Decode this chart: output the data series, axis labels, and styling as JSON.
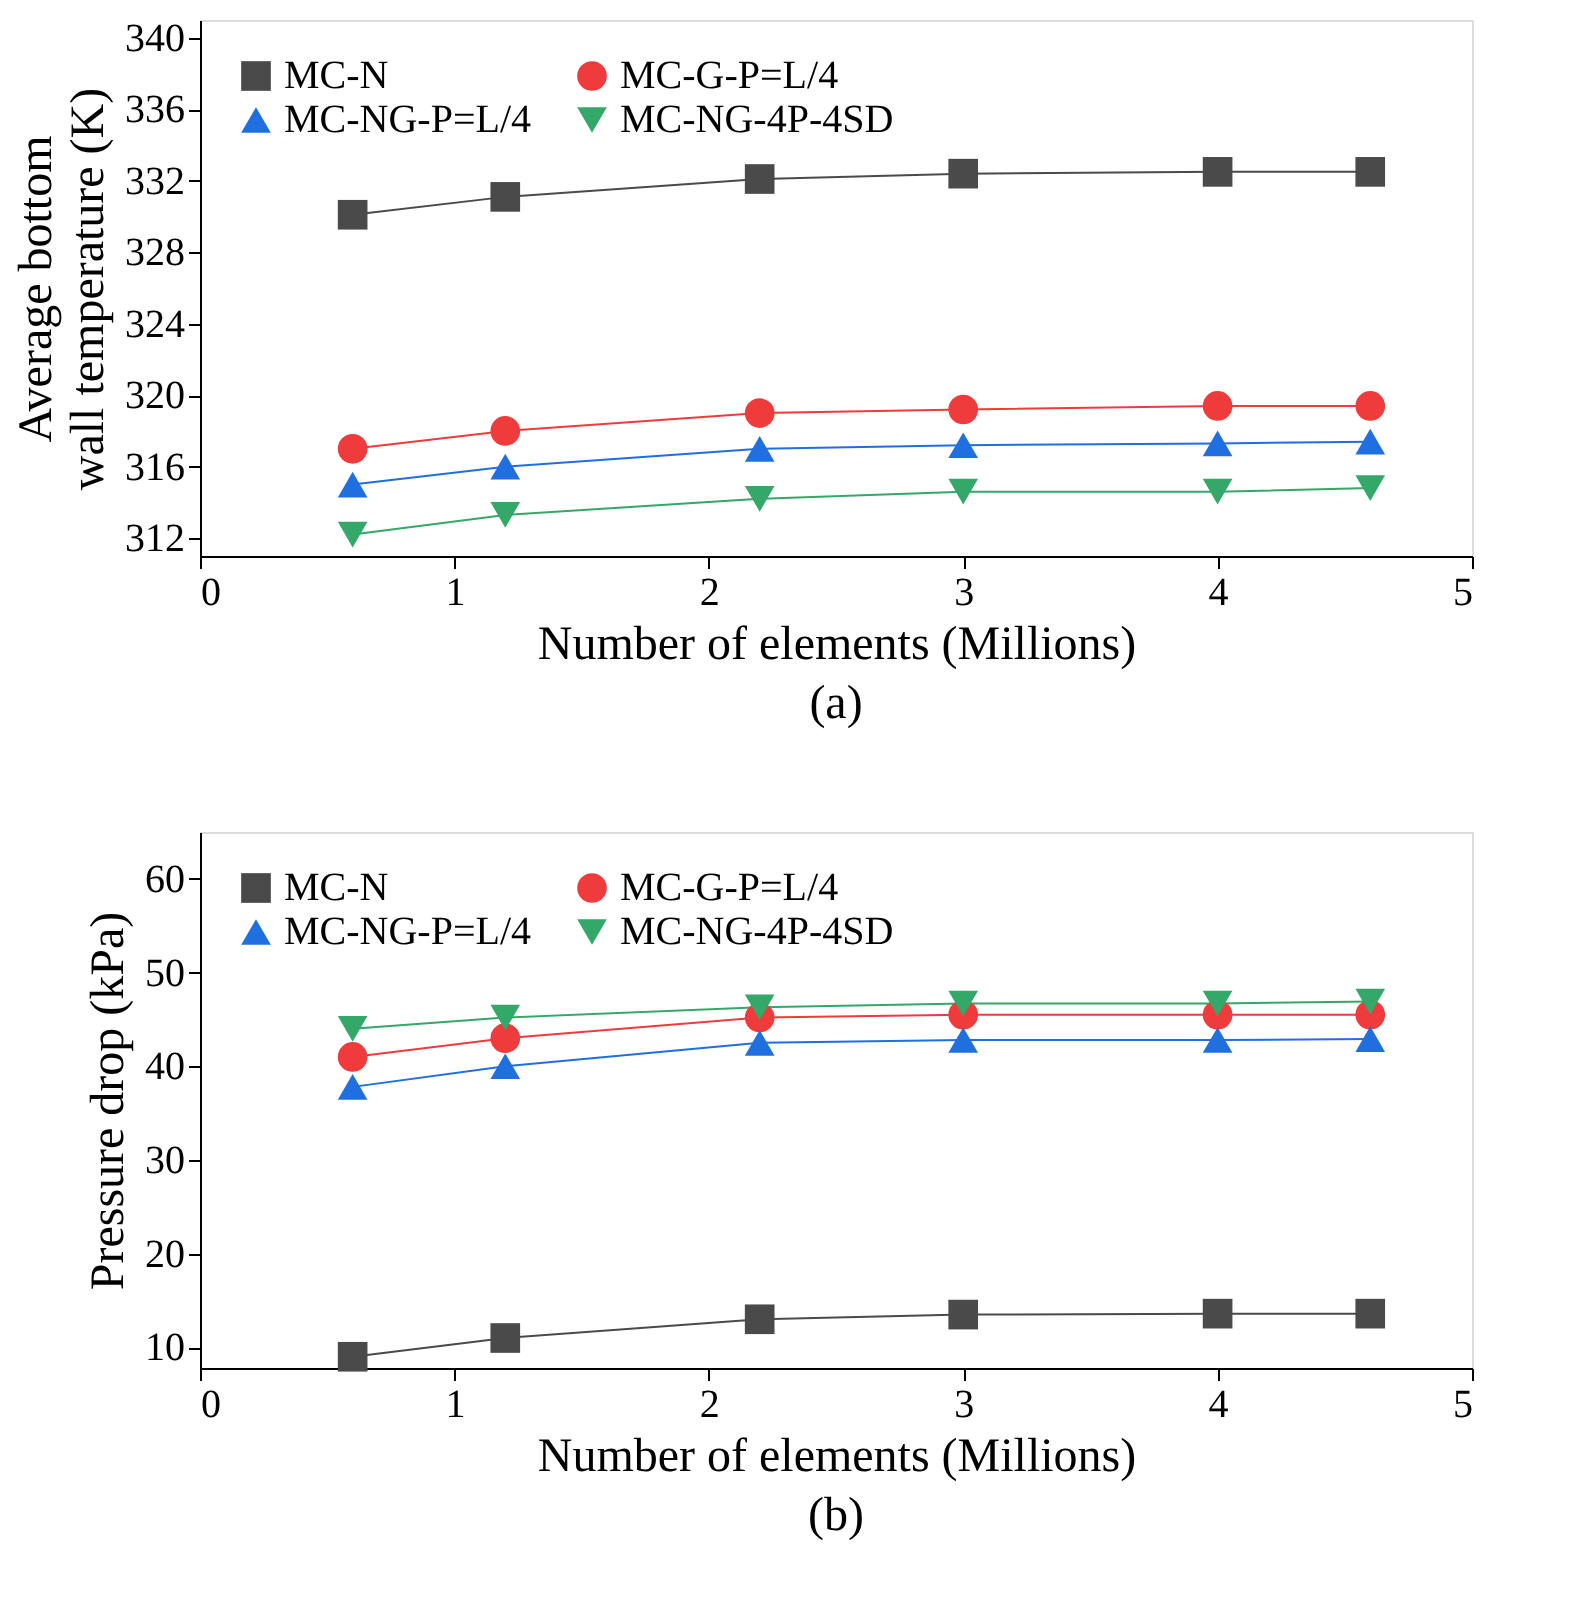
{
  "chart_data": [
    {
      "type": "line",
      "xlabel": "Number of elements (Millions)",
      "ylabel": "Average bottom wall temperature (K)",
      "annotations": [
        "(a)"
      ],
      "x": [
        0.6,
        1.2,
        2.2,
        3,
        4,
        4.6
      ],
      "xlim": [
        0,
        5
      ],
      "xticks": [
        0,
        1,
        2,
        3,
        4,
        5
      ],
      "ylim": [
        311,
        341
      ],
      "yticks": [
        312,
        316,
        320,
        324,
        328,
        332,
        336,
        340
      ],
      "grid": false,
      "legend": "top left",
      "line_style": "solid",
      "series": [
        {
          "name": "MC-N",
          "color": "#4a4a4a",
          "marker": "square",
          "values": [
            330.1,
            331.1,
            332.1,
            332.4,
            332.5,
            332.5
          ]
        },
        {
          "name": "MC-G-P=L/4",
          "color": "#ef3b3b",
          "marker": "circle",
          "values": [
            317.0,
            318.0,
            319.0,
            319.2,
            319.4,
            319.4
          ]
        },
        {
          "name": "MC-NG-P=L/4",
          "color": "#1f6fe0",
          "marker": "triangle",
          "values": [
            315.0,
            316.0,
            317.0,
            317.2,
            317.3,
            317.4
          ]
        },
        {
          "name": "MC-NG-4P-4SD",
          "color": "#34a868",
          "marker": "triangle-down",
          "values": [
            312.2,
            313.3,
            314.2,
            314.6,
            314.6,
            314.8
          ]
        }
      ]
    },
    {
      "type": "line",
      "xlabel": "Number of elements (Millions)",
      "ylabel": "Pressure drop (kPa)",
      "annotations": [
        "(b)"
      ],
      "x": [
        0.6,
        1.2,
        2.2,
        3,
        4,
        4.6
      ],
      "xlim": [
        0,
        5
      ],
      "xticks": [
        0,
        1,
        2,
        3,
        4,
        5
      ],
      "ylim": [
        7.8,
        65
      ],
      "yticks": [
        10,
        20,
        30,
        40,
        50,
        60
      ],
      "grid": false,
      "legend": "top left",
      "line_style": "solid",
      "series": [
        {
          "name": "MC-N",
          "color": "#4a4a4a",
          "marker": "square",
          "values": [
            9,
            11,
            13,
            13.5,
            13.6,
            13.6
          ]
        },
        {
          "name": "MC-G-P=L/4",
          "color": "#ef3b3b",
          "marker": "circle",
          "values": [
            41,
            43,
            45.2,
            45.5,
            45.5,
            45.5
          ]
        },
        {
          "name": "MC-NG-P=L/4",
          "color": "#1f6fe0",
          "marker": "triangle",
          "values": [
            37.8,
            40,
            42.5,
            42.8,
            42.8,
            42.9
          ]
        },
        {
          "name": "MC-NG-4P-4SD",
          "color": "#34a868",
          "marker": "triangle-down",
          "values": [
            44,
            45.2,
            46.3,
            46.7,
            46.7,
            46.9
          ]
        }
      ]
    }
  ]
}
